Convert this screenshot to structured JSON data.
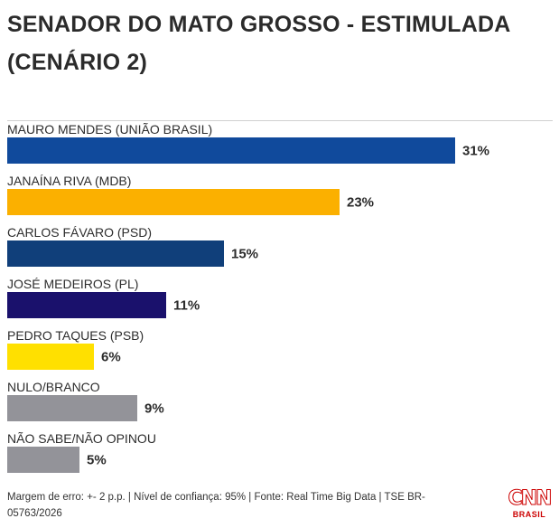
{
  "chart_data": {
    "type": "bar",
    "orientation": "horizontal",
    "title": "SENADOR DO MATO GROSSO - ESTIMULADA",
    "subtitle": "(CENÁRIO 2)",
    "unit": "%",
    "xlim": [
      0,
      31
    ],
    "categories": [
      "MAURO MENDES (UNIÃO BRASIL)",
      "JANAÍNA RIVA (MDB)",
      "CARLOS FÁVARO (PSD)",
      "JOSÉ MEDEIROS (PL)",
      "PEDRO TAQUES (PSB)",
      "NULO/BRANCO",
      "NÃO SABE/NÃO OPINOU"
    ],
    "values": [
      31,
      23,
      15,
      11,
      6,
      9,
      5
    ],
    "value_labels": [
      "31%",
      "23%",
      "15%",
      "11%",
      "6%",
      "9%",
      "5%"
    ],
    "colors": [
      "#104a9c",
      "#fbb000",
      "#103f7a",
      "#1a116c",
      "#ffe000",
      "#939399",
      "#939399"
    ]
  },
  "footer": {
    "note": "Margem de erro: +- 2 p.p. | Nível de confiança: 95% | Fonte: Real Time Big Data | TSE BR-05763/2026"
  },
  "logo": {
    "mark": "CNN",
    "sub": "BRASIL"
  }
}
